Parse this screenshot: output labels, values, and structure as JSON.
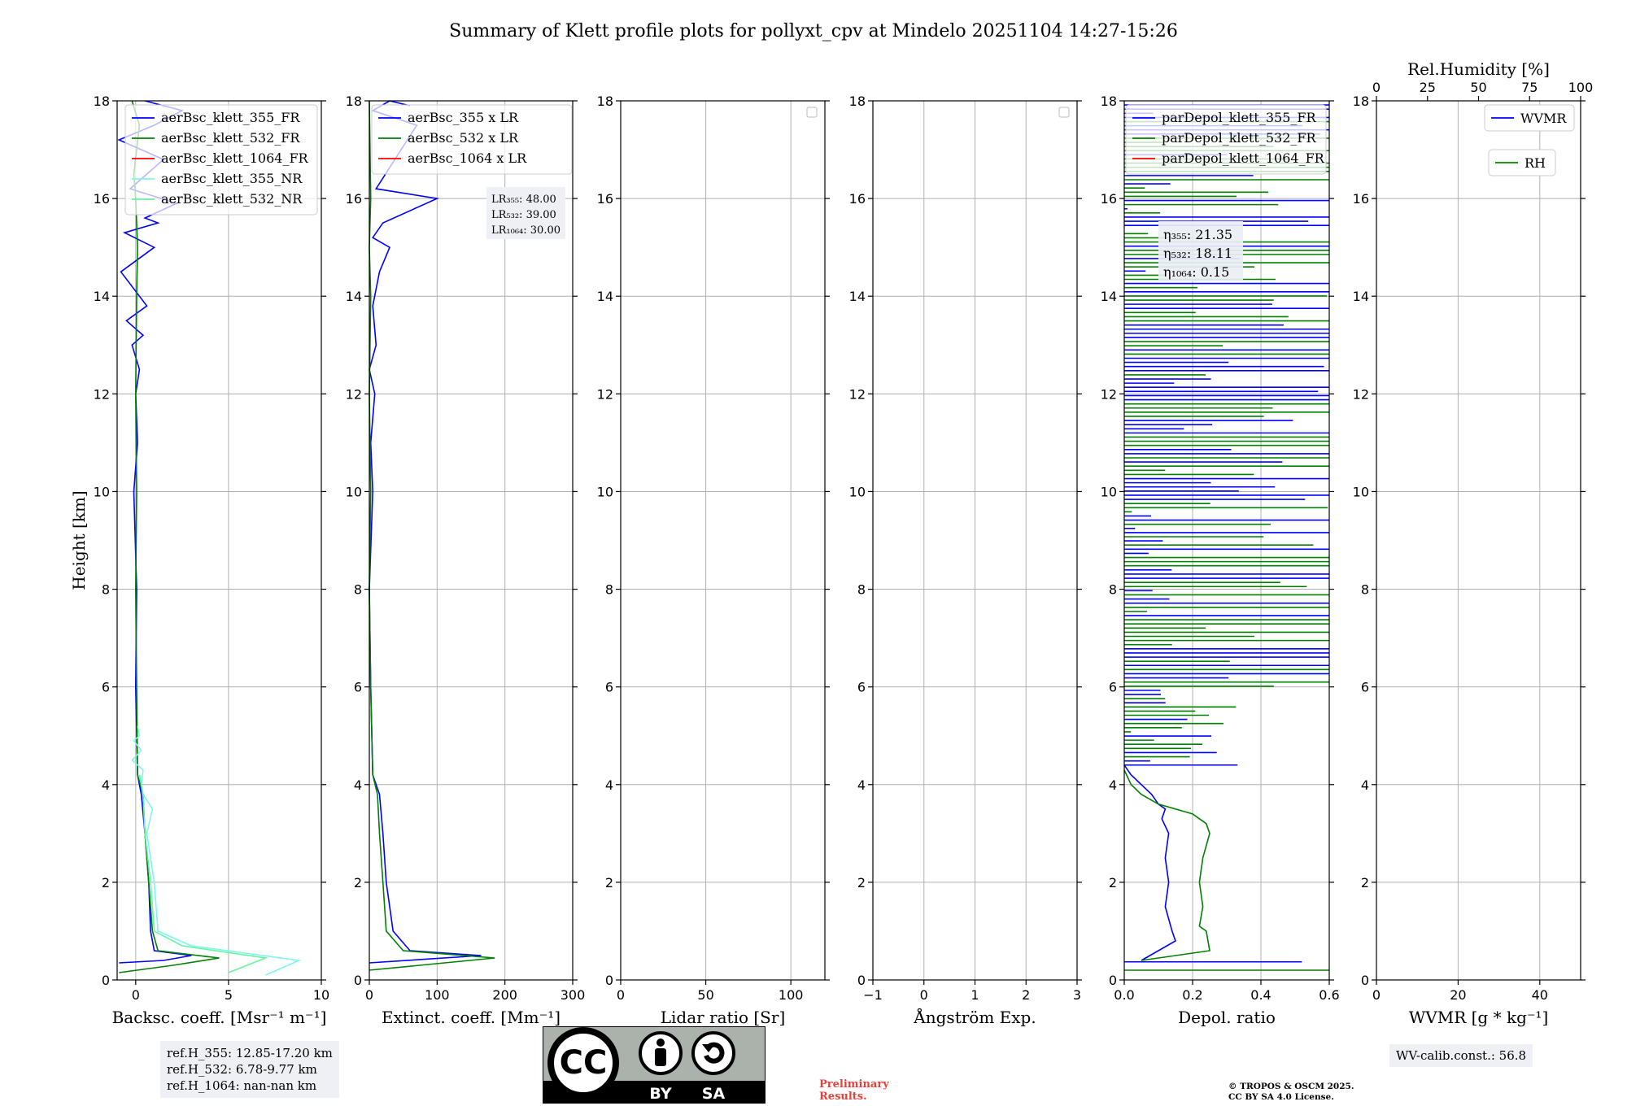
{
  "title": "Summary of Klett profile plots for pollyxt_cpv at Mindelo 20251104 14:27-15:26",
  "colors": {
    "blue": "#0000ff",
    "green": "#008000",
    "red": "#ff0000",
    "cyan": "#7ff5f0",
    "lightgreen": "#66f5a0",
    "grid": "#b0b0b0"
  },
  "chart_data": [
    {
      "type": "line",
      "id": "bsc",
      "xlabel": "Backsc. coeff. [Msr⁻¹ m⁻¹]",
      "ylabel": "Height [km]",
      "xlim": [
        -1,
        10
      ],
      "ylim": [
        0,
        18
      ],
      "xticks": [
        0,
        5,
        10
      ],
      "yticks": [
        0,
        2,
        4,
        6,
        8,
        10,
        12,
        14,
        16,
        18
      ],
      "grid": true,
      "legend_position": "top",
      "series": [
        {
          "name": "aerBsc_klett_355_FR",
          "color": "blue",
          "x": [
            -0.9,
            1.5,
            3.0,
            1.0,
            0.8,
            0.7,
            0.5,
            0.3,
            0.1,
            0.0,
            0.05,
            -0.1,
            0.1,
            0.0,
            0.2,
            -0.2,
            0.4,
            -0.5,
            0.6,
            -0.8,
            1.0,
            -0.6,
            1.2,
            0.5,
            2.2,
            -0.3,
            1.5,
            -0.9,
            1.0,
            2.5,
            0.5
          ],
          "y": [
            0.35,
            0.4,
            0.5,
            0.6,
            1.0,
            2.0,
            3.0,
            3.8,
            4.2,
            6.0,
            8.0,
            10.0,
            11.0,
            12.0,
            12.5,
            13.0,
            13.2,
            13.5,
            13.8,
            14.5,
            15.0,
            15.3,
            15.5,
            15.6,
            15.9,
            16.2,
            16.8,
            17.2,
            17.5,
            17.8,
            18.0
          ]
        },
        {
          "name": "aerBsc_klett_532_FR",
          "color": "green",
          "x": [
            -0.9,
            2.0,
            4.5,
            1.2,
            0.9,
            0.7,
            0.5,
            0.4,
            0.1,
            0.05,
            0.0,
            0.05,
            0.0,
            0.05,
            0.1,
            0.0,
            -0.1,
            0.2,
            -0.2
          ],
          "y": [
            0.15,
            0.3,
            0.45,
            0.6,
            1.0,
            2.0,
            3.0,
            3.8,
            4.2,
            6.0,
            8.0,
            10.0,
            12.0,
            14.0,
            15.0,
            16.0,
            16.5,
            17.5,
            18.0
          ]
        },
        {
          "name": "aerBsc_klett_1064_FR",
          "color": "red",
          "x": [],
          "y": []
        },
        {
          "name": "aerBsc_klett_355_NR",
          "color": "cyan",
          "x": [
            7.0,
            8.8,
            3.0,
            1.2,
            1.0,
            0.6,
            0.9,
            0.4,
            0.3,
            0.4,
            -0.2,
            0.3,
            -0.1,
            0.2,
            0.1
          ],
          "y": [
            0.1,
            0.4,
            0.7,
            1.0,
            2.0,
            3.0,
            3.5,
            3.8,
            4.0,
            4.3,
            4.5,
            4.7,
            4.9,
            5.0,
            5.2
          ]
        },
        {
          "name": "aerBsc_klett_532_NR",
          "color": "lightgreen",
          "x": [
            5.0,
            7.0,
            2.5,
            1.0,
            0.8,
            0.5,
            0.4,
            0.2
          ],
          "y": [
            0.15,
            0.45,
            0.7,
            1.0,
            2.0,
            3.0,
            3.8,
            4.2
          ]
        }
      ]
    },
    {
      "type": "line",
      "id": "ext",
      "xlabel": "Extinct. coeff. [Mm⁻¹]",
      "xlim": [
        0,
        300
      ],
      "ylim": [
        0,
        18
      ],
      "xticks": [
        0,
        100,
        200,
        300
      ],
      "yticks": [
        0,
        2,
        4,
        6,
        8,
        10,
        12,
        14,
        16,
        18
      ],
      "grid": true,
      "legend_position": "top",
      "series": [
        {
          "name": "aerBsc_355 x LR",
          "color": "blue",
          "x": [
            0,
            165,
            60,
            35,
            25,
            20,
            15,
            5,
            2,
            0,
            5,
            2,
            8,
            0,
            10,
            5,
            15,
            30,
            5,
            20,
            100,
            10,
            70,
            5,
            30,
            60
          ],
          "y": [
            0.35,
            0.5,
            0.6,
            1.0,
            2.0,
            3.0,
            3.8,
            4.2,
            6.0,
            8.0,
            10.0,
            11.0,
            12.0,
            12.5,
            13.0,
            13.8,
            14.5,
            15.0,
            15.2,
            15.5,
            16.0,
            16.2,
            17.5,
            17.8,
            18.0,
            17.9
          ]
        },
        {
          "name": "aerBsc_532 x LR",
          "color": "green",
          "x": [
            0,
            185,
            50,
            25,
            20,
            15,
            12,
            5,
            2,
            0,
            2,
            0,
            2,
            0,
            2,
            0
          ],
          "y": [
            0.2,
            0.45,
            0.6,
            1.0,
            2.0,
            3.0,
            3.8,
            4.2,
            6.0,
            8.0,
            10.0,
            12.0,
            14.0,
            15.0,
            16.0,
            18.0
          ]
        },
        {
          "name": "aerBsc_1064 x LR",
          "color": "red",
          "x": [],
          "y": []
        }
      ],
      "annotation": {
        "lr355": "LR₃₅₅: 48.00",
        "lr532": "LR₅₃₂: 39.00",
        "lr1064": "LR₁₀₆₄: 30.00"
      }
    },
    {
      "type": "line",
      "id": "lr",
      "xlabel": "Lidar ratio [Sr]",
      "xlim": [
        0,
        120
      ],
      "ylim": [
        0,
        18
      ],
      "xticks": [
        0,
        50,
        100
      ],
      "yticks": [
        0,
        2,
        4,
        6,
        8,
        10,
        12,
        14,
        16,
        18
      ],
      "grid": true,
      "series": []
    },
    {
      "type": "line",
      "id": "ang",
      "xlabel": "Ångström Exp.",
      "xlim": [
        -1,
        3
      ],
      "ylim": [
        0,
        18
      ],
      "xticks": [
        -1,
        0,
        1,
        2,
        3
      ],
      "yticks": [
        0,
        2,
        4,
        6,
        8,
        10,
        12,
        14,
        16,
        18
      ],
      "grid": true,
      "series": []
    },
    {
      "type": "line",
      "id": "dep",
      "xlabel": "Depol. ratio",
      "xlim": [
        0,
        0.6
      ],
      "ylim": [
        0,
        18
      ],
      "xticks": [
        0.0,
        0.2,
        0.4,
        0.6
      ],
      "yticks": [
        0,
        2,
        4,
        6,
        8,
        10,
        12,
        14,
        16,
        18
      ],
      "grid": true,
      "legend_position": "top",
      "series": [
        {
          "name": "parDepol_klett_355_FR",
          "color": "blue",
          "x": [
            0.05,
            0.15,
            0.14,
            0.12,
            0.13,
            0.12,
            0.13,
            0.11,
            0.12,
            0.1,
            0.08,
            0.05,
            0.02,
            0.0
          ],
          "y": [
            0.4,
            0.8,
            1.0,
            1.5,
            2.0,
            2.5,
            3.0,
            3.3,
            3.5,
            3.6,
            3.8,
            4.0,
            4.2,
            4.4
          ]
        },
        {
          "name": "parDepol_klett_532_FR",
          "color": "green",
          "x": [
            0.05,
            0.25,
            0.24,
            0.22,
            0.23,
            0.22,
            0.23,
            0.25,
            0.24,
            0.2,
            0.1,
            0.05,
            0.02,
            0.0
          ],
          "y": [
            0.4,
            0.6,
            1.0,
            1.1,
            1.5,
            2.0,
            2.5,
            3.0,
            3.2,
            3.4,
            3.6,
            3.8,
            4.0,
            4.3
          ]
        },
        {
          "name": "parDepol_klett_1064_FR",
          "color": "red",
          "x": [],
          "y": []
        }
      ],
      "annotation": {
        "eta355": "η₃₅₅: 21.35",
        "eta532": "η₅₃₂: 18.11",
        "eta1064": "η₁₀₆₄: 0.15"
      }
    },
    {
      "type": "line",
      "id": "wv",
      "xlabel": "WVMR [g * kg⁻¹]",
      "x2label": "Rel.Humidity [%]",
      "xlim": [
        0,
        50
      ],
      "x2lim": [
        0,
        100
      ],
      "ylim": [
        0,
        18
      ],
      "xticks": [
        0,
        20,
        40
      ],
      "x2ticks": [
        0,
        25,
        50,
        75,
        100
      ],
      "yticks": [
        0,
        2,
        4,
        6,
        8,
        10,
        12,
        14,
        16,
        18
      ],
      "grid": true,
      "series": [
        {
          "name": "WVMR",
          "color": "blue",
          "x": [],
          "y": []
        },
        {
          "name": "RH",
          "color": "green",
          "x": [],
          "y": []
        }
      ]
    }
  ],
  "footer": {
    "ref_h_355": "ref.H_355: 12.85-17.20 km",
    "ref_h_532": "ref.H_532: 6.78-9.77 km",
    "ref_h_1064": "ref.H_1064: nan-nan km",
    "cc_logo": "CC",
    "cc_by": "BY",
    "cc_sa": "SA",
    "preliminary_1": "Preliminary",
    "preliminary_2": "Results.",
    "copyright_1": "© TROPOS & OSCM 2025.",
    "copyright_2": "CC BY SA 4.0 License.",
    "wv_calib": "WV-calib.const.: 56.8"
  }
}
